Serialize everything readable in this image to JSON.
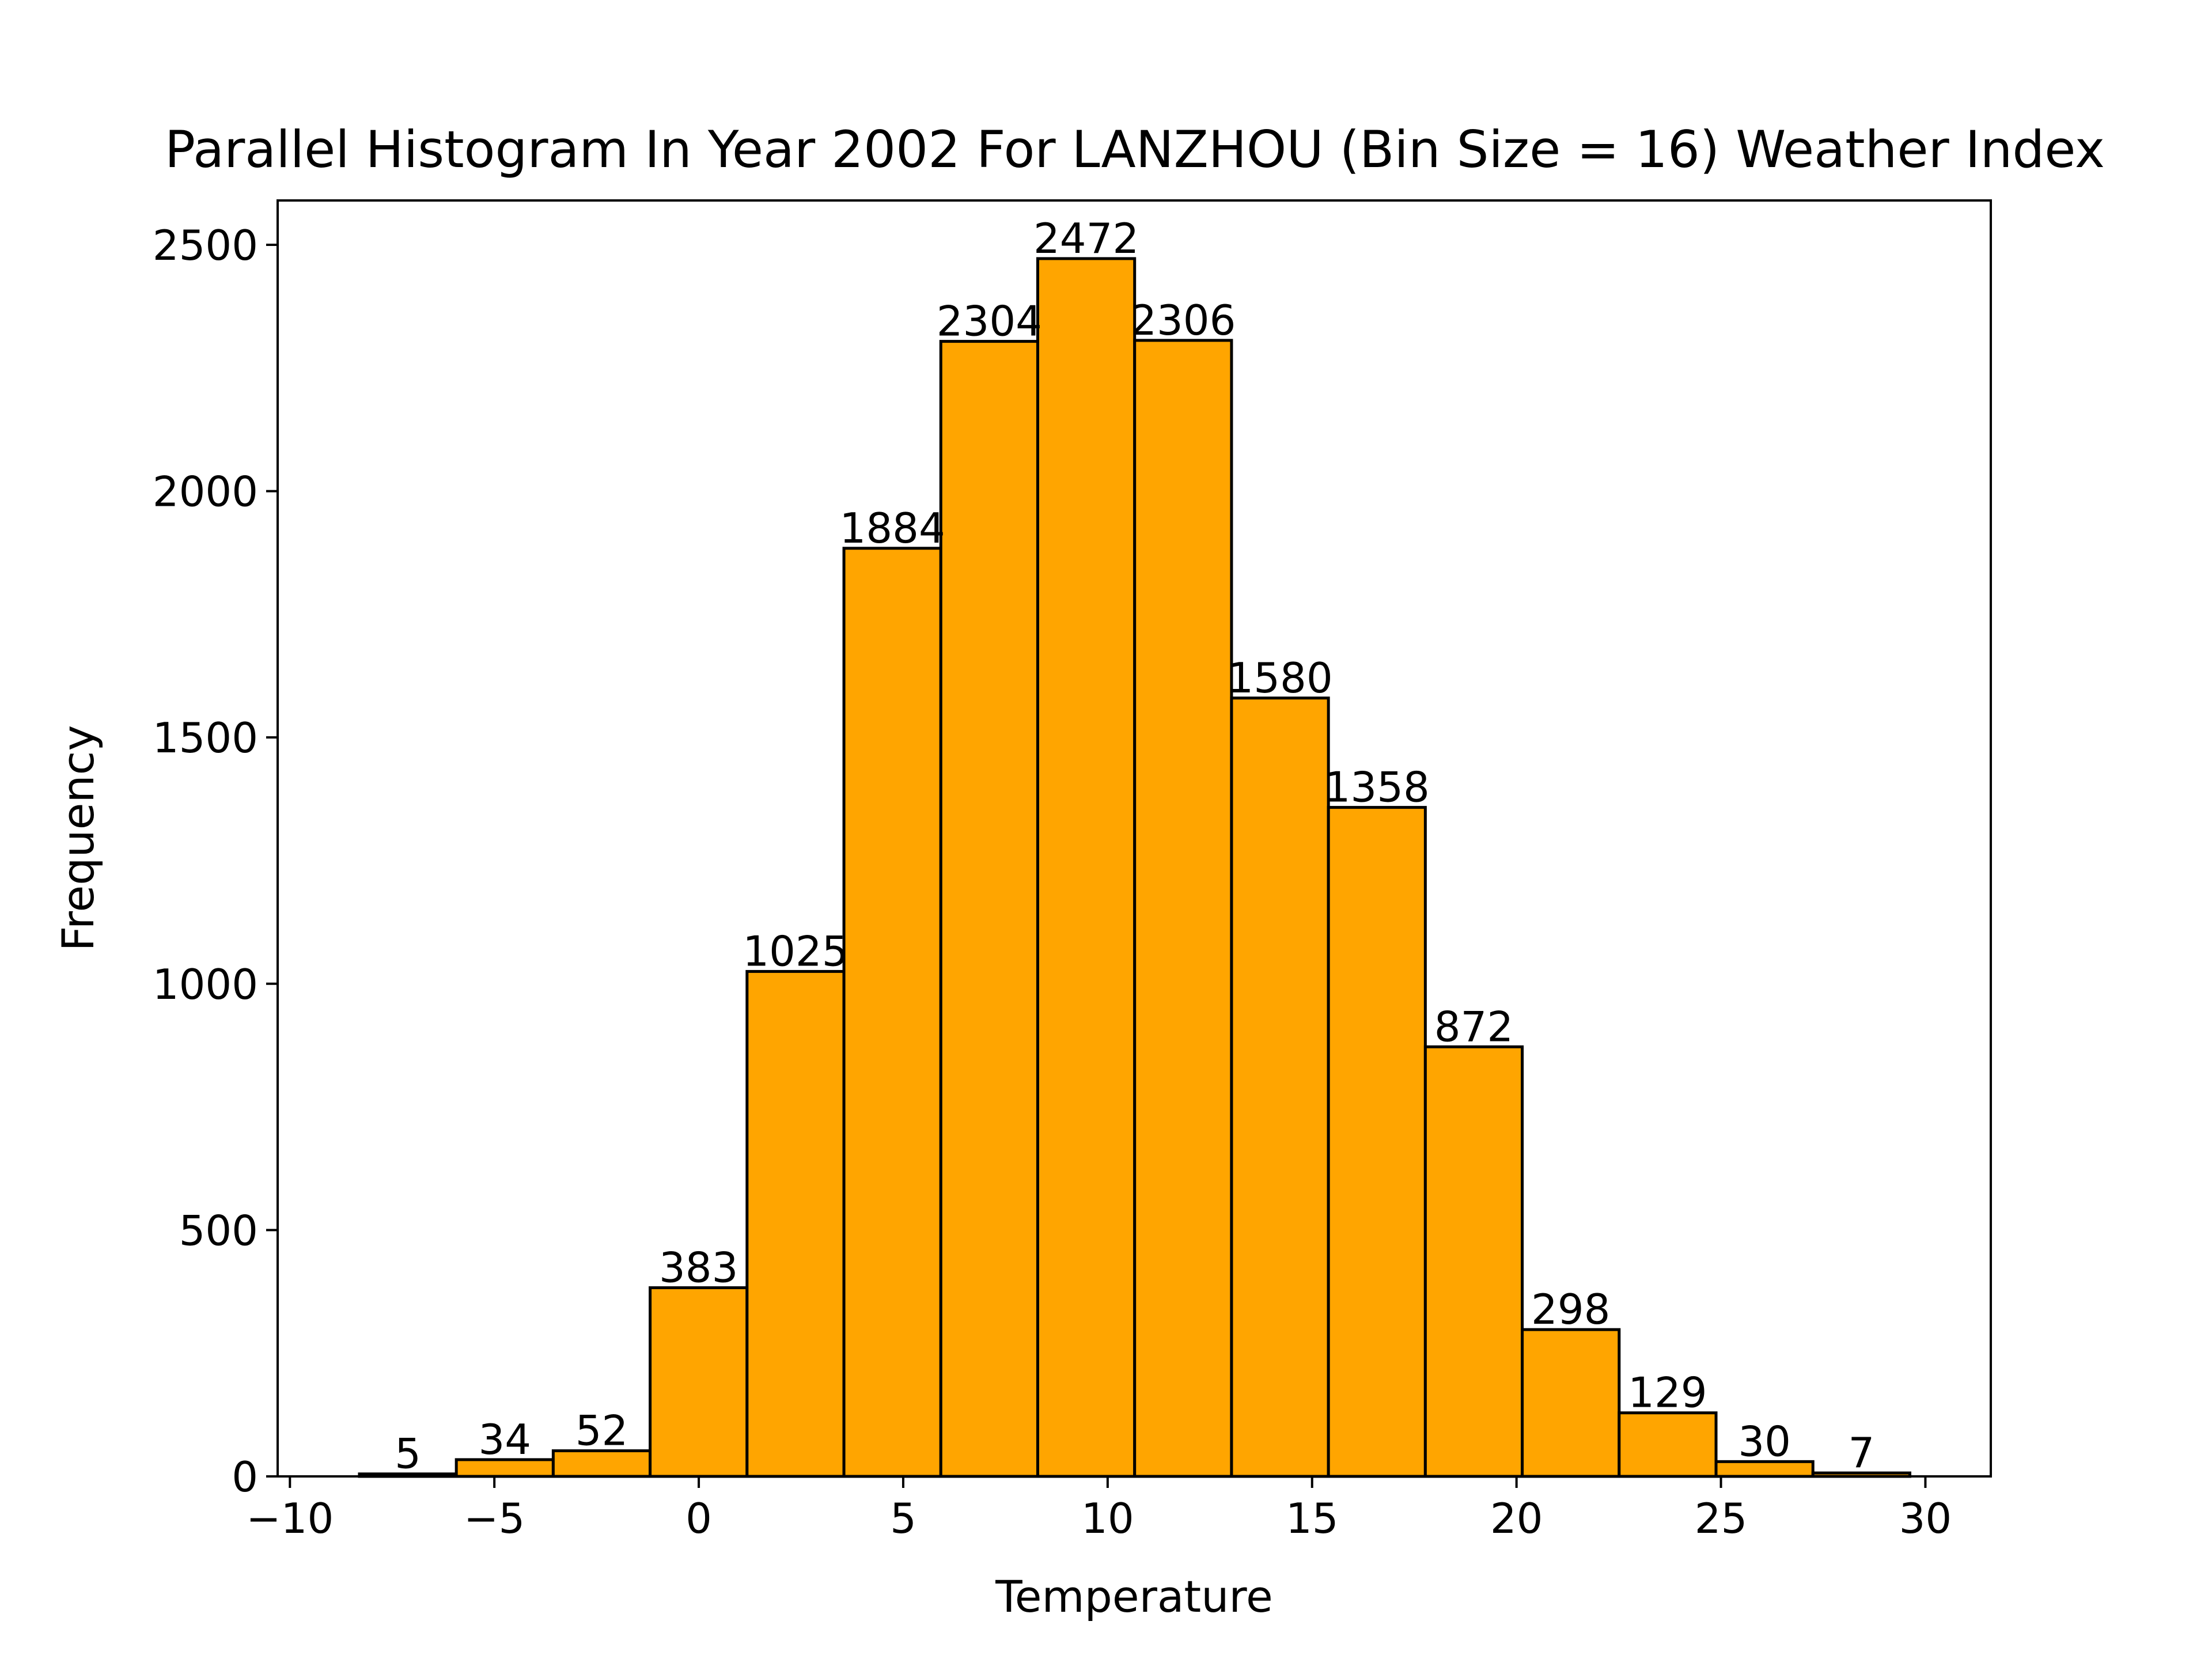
{
  "chart_data": {
    "type": "bar",
    "title": "Parallel Histogram In Year 2002 For LANZHOU (Bin Size = 16) Weather Index",
    "xlabel": "Temperature",
    "ylabel": "Frequency",
    "bin_edges": [
      -8.3,
      -5.93,
      -3.56,
      -1.19,
      1.18,
      3.55,
      5.92,
      8.29,
      10.66,
      13.03,
      15.4,
      17.77,
      20.14,
      22.51,
      24.88,
      27.25,
      29.62
    ],
    "values": [
      5,
      34,
      52,
      383,
      1025,
      1884,
      2304,
      2472,
      2306,
      1580,
      1358,
      872,
      298,
      129,
      30,
      7
    ],
    "xlim": [
      -10.3,
      31.6
    ],
    "ylim": [
      0,
      2590
    ],
    "xticks": [
      -10,
      -5,
      0,
      5,
      10,
      15,
      20,
      25,
      30
    ],
    "xtick_labels": [
      "−10",
      "−5",
      "0",
      "5",
      "10",
      "15",
      "20",
      "25",
      "30"
    ],
    "yticks": [
      0,
      500,
      1000,
      1500,
      2000,
      2500
    ],
    "ytick_labels": [
      "0",
      "500",
      "1000",
      "1500",
      "2000",
      "2500"
    ],
    "bar_color": "#FFA500",
    "edge_color": "#000000",
    "grid": false,
    "legend": false
  }
}
